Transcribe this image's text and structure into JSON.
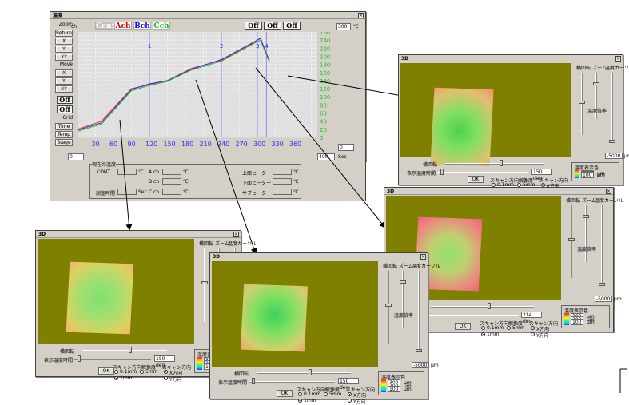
{
  "main": {
    "title": "温度",
    "header": {
      "ch_label": "ch",
      "channels": [
        "Cont",
        "Ach",
        "Bch",
        "Cch"
      ],
      "off_buttons": [
        "Off",
        "Off",
        "Off"
      ],
      "temp_input": "300",
      "unit": "℃"
    },
    "left_buttons": [
      "Zoom",
      "Return",
      "X",
      "Y",
      "XY",
      "Move",
      "X",
      "Y",
      "XY"
    ],
    "off_left": [
      "Off",
      "Off"
    ],
    "left_buttons2": [
      "Grid",
      "Time",
      "Temp",
      "Stage"
    ],
    "x_ticks": [
      "30",
      "60",
      "90",
      "120",
      "150",
      "180",
      "210",
      "240",
      "270",
      "300",
      "330",
      "360"
    ],
    "y_ticks": [
      "260",
      "240",
      "220",
      "200",
      "180",
      "160",
      "140",
      "120",
      "100",
      "80",
      "60",
      "40",
      "20",
      "0"
    ],
    "markers": [
      "1",
      "2",
      "3",
      "4"
    ],
    "xmin_input": "0",
    "xmax_input": "400",
    "x_unit": "Sec",
    "ymin_input": "0",
    "readout_title": "現在の温度",
    "readout": {
      "cont": "CONT",
      "ach": "A ch",
      "bch": "B ch",
      "cch": "C ch",
      "time": "測定時間",
      "sec": "Sec",
      "up": "上面ヒーター",
      "down": "下面ヒーター",
      "sub": "サブヒーター",
      "deg": "℃"
    }
  },
  "chart_data": {
    "type": "line",
    "title": "",
    "xlabel": "",
    "ylabel": "",
    "xlim": [
      0,
      400
    ],
    "ylim": [
      0,
      260
    ],
    "series": [
      {
        "name": "Cont",
        "color": "#ff2020",
        "x": [
          0,
          40,
          90,
          120,
          150,
          190,
          240,
          290,
          305,
          320
        ],
        "y": [
          20,
          40,
          120,
          130,
          140,
          170,
          190,
          230,
          245,
          190
        ]
      },
      {
        "name": "Bch",
        "color": "#3030ff",
        "x": [
          0,
          40,
          90,
          120,
          150,
          190,
          240,
          290,
          305,
          320
        ],
        "y": [
          18,
          36,
          118,
          132,
          140,
          168,
          192,
          232,
          244,
          188
        ]
      },
      {
        "name": "Cch",
        "color": "#20c020",
        "x": [
          0,
          40,
          90,
          120,
          150,
          190,
          240,
          290,
          305,
          320
        ],
        "y": [
          15,
          33,
          115,
          128,
          138,
          166,
          188,
          228,
          240,
          186
        ]
      }
    ]
  },
  "threed": {
    "title": "3D",
    "rotation_label": "横回転",
    "zoom_label": "ズーム",
    "temp_scale_label": "温度カーソル",
    "temp_rate_label": "温度倍率",
    "display_label": "表示温度時間",
    "legend_title": "温度表示色",
    "legend_values": [
      "300",
      "200",
      "100"
    ],
    "unit": "μm",
    "scan_res": "スキャン方向解像度",
    "scan_dir": "スキャン方向",
    "res_options": [
      "0.1mm",
      "1mm",
      "5mm"
    ],
    "dir_options": [
      "X方向",
      "Y方向"
    ],
    "ok": "OK",
    "deg_values": [
      "150 deg",
      "234 deg",
      "150 deg",
      "150 deg"
    ],
    "height_value": "-5000"
  }
}
